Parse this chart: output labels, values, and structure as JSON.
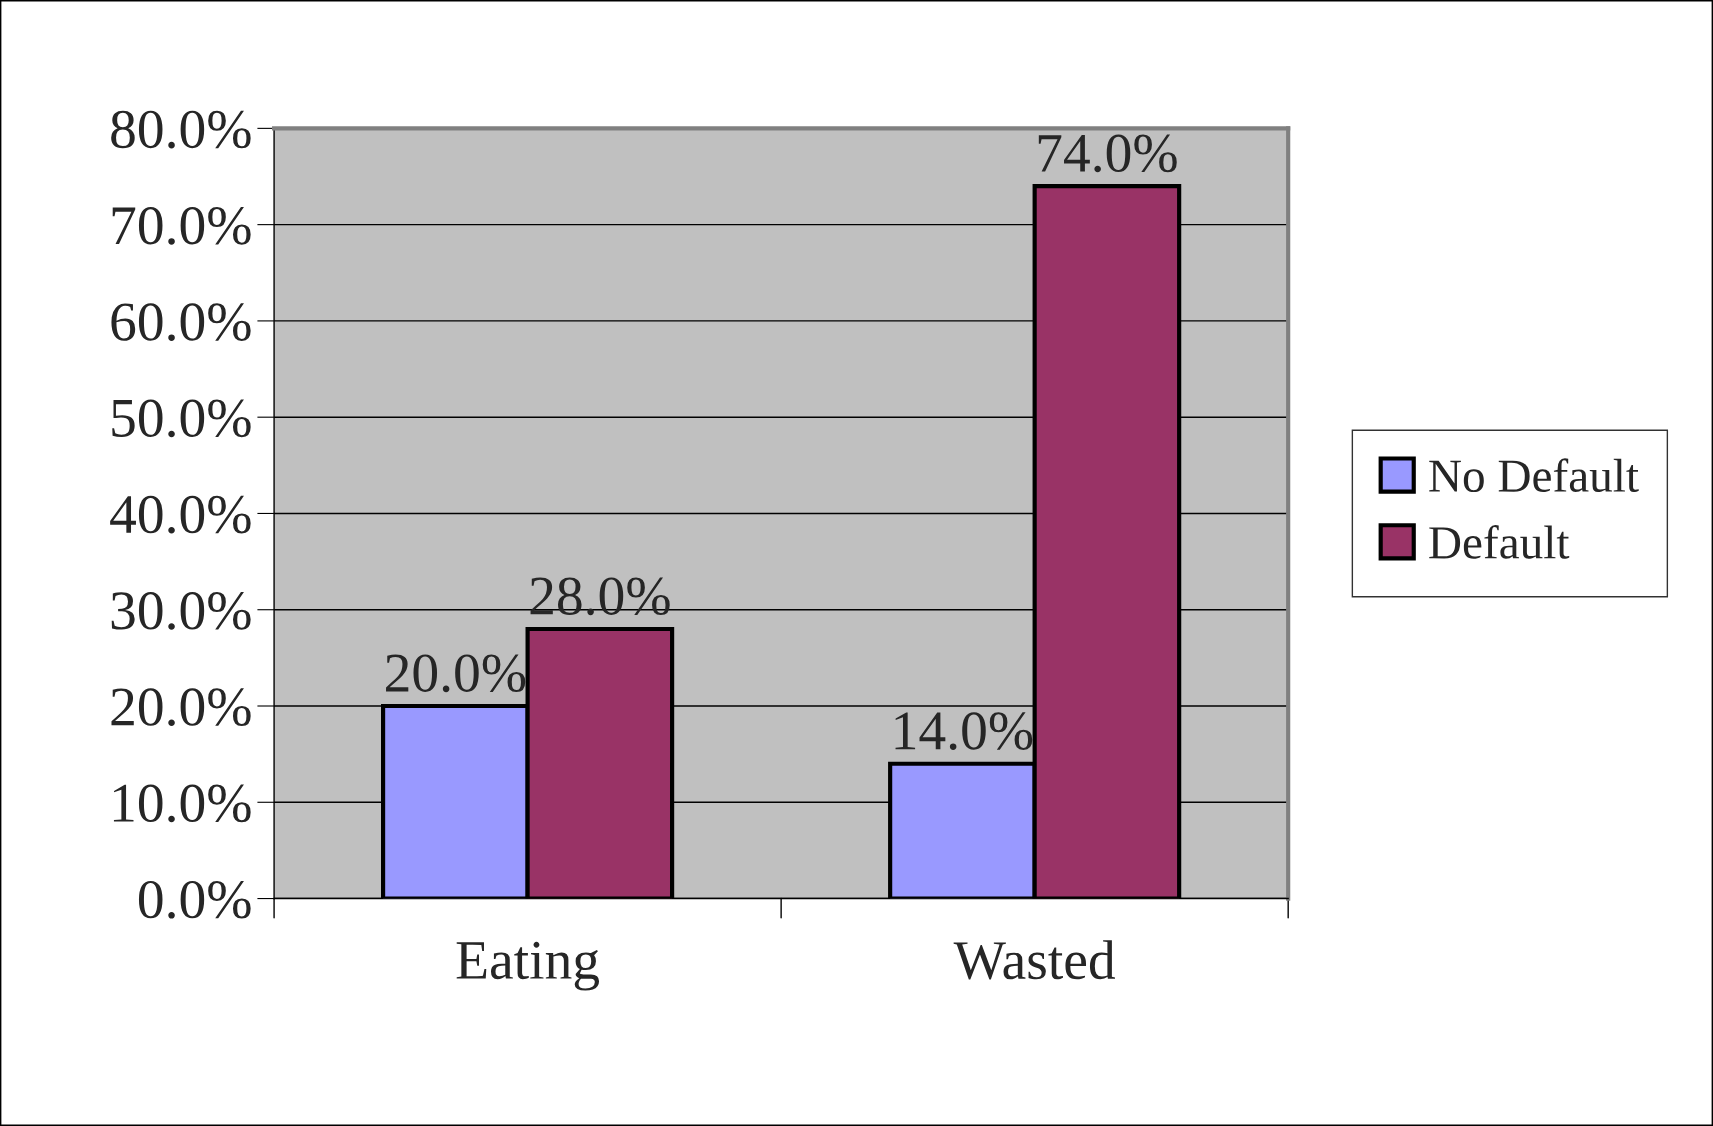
{
  "chart_data": {
    "type": "bar",
    "categories": [
      "Eating",
      "Wasted"
    ],
    "series": [
      {
        "name": "No Default",
        "color": "#9999ff",
        "values": [
          20,
          14
        ],
        "value_labels": [
          "20.0%",
          "14.0%"
        ]
      },
      {
        "name": "Default",
        "color": "#993366",
        "values": [
          28,
          74
        ],
        "value_labels": [
          "28.0%",
          "74.0%"
        ]
      }
    ],
    "ylim": [
      0,
      80
    ],
    "yticks": [
      {
        "value": 0,
        "label": "0.0%"
      },
      {
        "value": 10,
        "label": "10.0%"
      },
      {
        "value": 20,
        "label": "20.0%"
      },
      {
        "value": 30,
        "label": "30.0%"
      },
      {
        "value": 40,
        "label": "40.0%"
      },
      {
        "value": 50,
        "label": "50.0%"
      },
      {
        "value": 60,
        "label": "60.0%"
      },
      {
        "value": 70,
        "label": "70.0%"
      },
      {
        "value": 80,
        "label": "80.0%"
      }
    ],
    "grid": "y",
    "legend": "right"
  }
}
